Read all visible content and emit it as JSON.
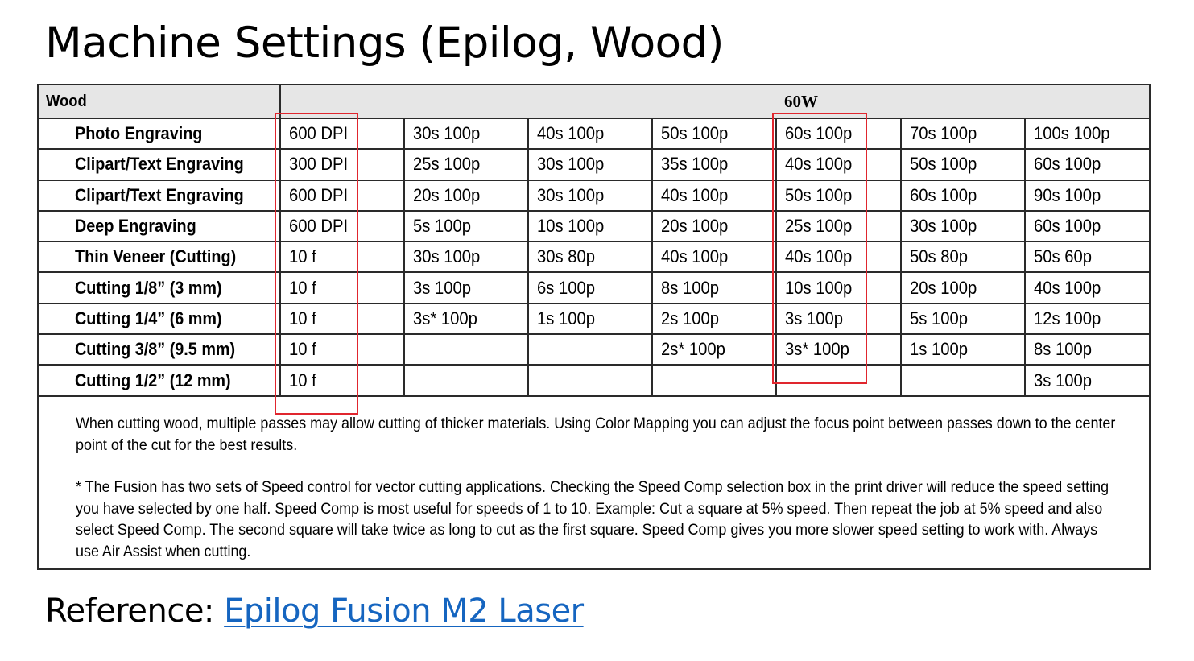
{
  "slide": {
    "title": "Machine Settings (Epilog, Wood)"
  },
  "table": {
    "material_label": "Wood",
    "power_label": "60W",
    "rows": [
      {
        "label": "Photo Engraving",
        "cells": [
          "600 DPI",
          "30s 100p",
          "40s 100p",
          "50s 100p",
          "60s 100p",
          "70s 100p",
          "100s 100p"
        ]
      },
      {
        "label": "Clipart/Text Engraving",
        "cells": [
          "300 DPI",
          "25s 100p",
          "30s 100p",
          "35s 100p",
          "40s 100p",
          "50s 100p",
          "60s 100p"
        ]
      },
      {
        "label": "Clipart/Text Engraving",
        "cells": [
          "600 DPI",
          "20s 100p",
          "30s 100p",
          "40s 100p",
          "50s 100p",
          "60s 100p",
          "90s 100p"
        ]
      },
      {
        "label": "Deep Engraving",
        "cells": [
          "600 DPI",
          "5s 100p",
          "10s 100p",
          "20s 100p",
          "25s 100p",
          "30s 100p",
          "60s 100p"
        ]
      },
      {
        "label": "Thin Veneer (Cutting)",
        "cells": [
          "10 f",
          "30s 100p",
          "30s 80p",
          "40s 100p",
          "40s 100p",
          "50s 80p",
          "50s 60p"
        ]
      },
      {
        "label": "Cutting 1/8” (3 mm)",
        "cells": [
          "10 f",
          "3s 100p",
          "6s 100p",
          "8s 100p",
          "10s 100p",
          "20s 100p",
          "40s 100p"
        ]
      },
      {
        "label": "Cutting 1/4” (6 mm)",
        "cells": [
          "10 f",
          "3s* 100p",
          "1s 100p",
          "2s 100p",
          "3s 100p",
          "5s 100p",
          "12s 100p"
        ]
      },
      {
        "label": "Cutting 3/8” (9.5 mm)",
        "cells": [
          "10 f",
          "",
          "",
          "2s* 100p",
          "3s* 100p",
          "1s 100p",
          "8s 100p"
        ]
      },
      {
        "label": "Cutting 1/2” (12 mm)",
        "cells": [
          "10 f",
          "",
          "",
          "",
          "",
          "",
          "3s 100p"
        ]
      }
    ],
    "notes": [
      "When cutting wood, multiple passes may allow cutting of thicker materials. Using Color Mapping you can adjust the focus point between passes down to the center point of the cut for the best results.",
      "* The Fusion has two sets of Speed control for vector cutting applications. Checking the Speed Comp selection box in the print driver will reduce the speed setting you have selected by one half. Speed Comp is most useful for speeds of 1 to 10. Example: Cut a square at 5% speed. Then repeat the job at 5% speed and also select Speed Comp. The second square will take twice as long to cut as the first square. Speed Comp gives you more slower speed setting to work with. Always use Air Assist when cutting."
    ]
  },
  "reference": {
    "prefix": "Reference: ",
    "link_text": "Epilog Fusion M2 Laser"
  },
  "colors": {
    "highlight": "#e0262e",
    "link": "#1565c0",
    "header_bg": "#e6e6e6"
  }
}
